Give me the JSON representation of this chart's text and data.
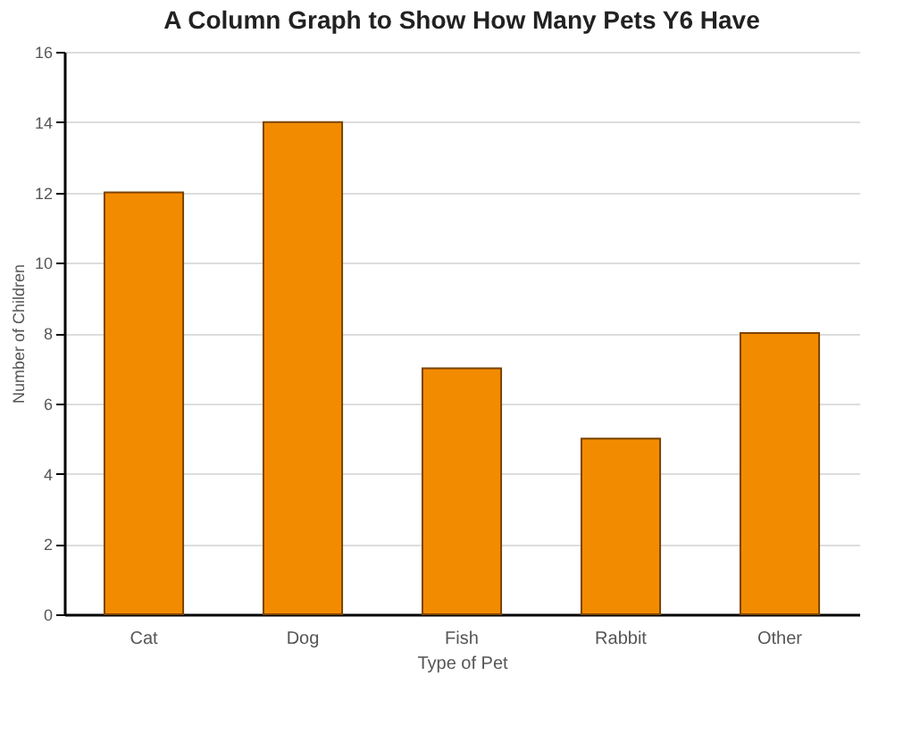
{
  "chart_data": {
    "type": "bar",
    "title": "A Column Graph to Show\nHow Many Pets Y6 Have",
    "xlabel": "Type of Pet",
    "ylabel": "Number of Children",
    "categories": [
      "Cat",
      "Dog",
      "Fish",
      "Rabbit",
      "Other"
    ],
    "values": [
      12,
      14,
      7,
      5,
      8
    ],
    "color": "#f38b00",
    "ylim": [
      0,
      16
    ],
    "yticks": [
      0,
      2,
      4,
      6,
      8,
      10,
      12,
      14,
      16
    ],
    "grid": "y"
  }
}
